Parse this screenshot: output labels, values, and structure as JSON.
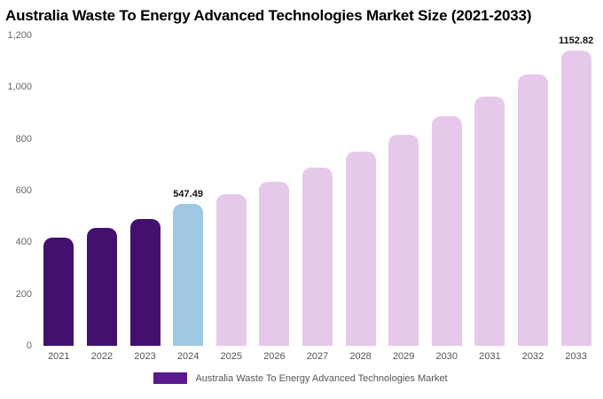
{
  "title": "Australia Waste To Energy Advanced Technologies Market Size (2021-2033)",
  "colors": {
    "historical": "#44106e",
    "current": "#9fc8e4",
    "forecast": "#e6c9ea"
  },
  "legend": {
    "label": "Australia Waste To Energy Advanced Technologies Market",
    "swatch_color": "#581a8e"
  },
  "chart_data": {
    "type": "bar",
    "title": "Australia Waste To Energy Advanced Technologies Market Size (2021-2033)",
    "categories": [
      "2021",
      "2022",
      "2023",
      "2024",
      "2025",
      "2026",
      "2027",
      "2028",
      "2029",
      "2030",
      "2031",
      "2032",
      "2033"
    ],
    "values": [
      418,
      455,
      492,
      547.49,
      585,
      635,
      690,
      750,
      815,
      888,
      962,
      1050,
      1152.82
    ],
    "bar_roles": [
      "historical",
      "historical",
      "historical",
      "current",
      "forecast",
      "forecast",
      "forecast",
      "forecast",
      "forecast",
      "forecast",
      "forecast",
      "forecast",
      "forecast"
    ],
    "point_labels": [
      "",
      "",
      "",
      "547.49",
      "",
      "",
      "",
      "",
      "",
      "",
      "",
      "",
      "1152.82"
    ],
    "xlabel": "",
    "ylabel": "",
    "ylim": [
      0,
      1200
    ],
    "yticks": [
      "1,200",
      "1,000",
      "800",
      "600",
      "400",
      "200",
      "0"
    ],
    "grid": false,
    "legend_position": "bottom"
  }
}
